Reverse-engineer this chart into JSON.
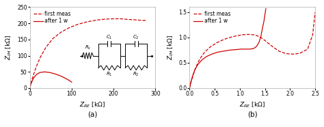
{
  "plot_a": {
    "dashed_re": [
      0,
      3,
      8,
      15,
      25,
      38,
      55,
      75,
      95,
      115,
      138,
      160,
      180,
      200,
      218,
      235,
      248,
      260,
      268,
      274,
      278,
      280
    ],
    "dashed_im": [
      0,
      18,
      38,
      65,
      95,
      125,
      153,
      173,
      187,
      197,
      205,
      210,
      213,
      214,
      214,
      212,
      211,
      210,
      209,
      209,
      208,
      208
    ],
    "solid_re": [
      0,
      1,
      3,
      6,
      10,
      16,
      24,
      35,
      48,
      62,
      76,
      88,
      96,
      100
    ],
    "solid_im": [
      0,
      6,
      14,
      23,
      33,
      42,
      48,
      50,
      48,
      43,
      36,
      28,
      22,
      18
    ],
    "xlim": [
      0,
      300
    ],
    "ylim": [
      0,
      250
    ],
    "xticks": [
      0,
      100,
      200,
      300
    ],
    "yticks": [
      0,
      50,
      100,
      150,
      200,
      250
    ],
    "xlabel": "Z_{RE} [kΩ]",
    "ylabel": "Z_{IM} [kΩ]",
    "label": "(a)"
  },
  "plot_b": {
    "dashed_re": [
      0,
      0.03,
      0.07,
      0.12,
      0.2,
      0.3,
      0.42,
      0.55,
      0.68,
      0.8,
      0.92,
      1.03,
      1.13,
      1.22,
      1.3,
      1.38,
      1.45,
      1.55,
      1.65,
      1.78,
      1.92,
      2.08,
      2.2,
      2.35,
      2.45,
      2.5
    ],
    "dashed_im": [
      0,
      0.12,
      0.25,
      0.4,
      0.57,
      0.71,
      0.82,
      0.9,
      0.96,
      1.0,
      1.03,
      1.05,
      1.06,
      1.06,
      1.05,
      1.02,
      0.98,
      0.9,
      0.82,
      0.73,
      0.68,
      0.67,
      0.69,
      0.77,
      1.05,
      1.5
    ],
    "solid_re": [
      0,
      0.015,
      0.03,
      0.06,
      0.1,
      0.16,
      0.24,
      0.33,
      0.44,
      0.56,
      0.68,
      0.8,
      0.92,
      1.03,
      1.12,
      1.2,
      1.27,
      1.33,
      1.38,
      1.42,
      1.45,
      1.48,
      1.5,
      1.51,
      1.52
    ],
    "solid_im": [
      0,
      0.07,
      0.14,
      0.24,
      0.35,
      0.46,
      0.55,
      0.62,
      0.67,
      0.71,
      0.73,
      0.75,
      0.76,
      0.77,
      0.77,
      0.77,
      0.78,
      0.82,
      0.9,
      1.02,
      1.18,
      1.32,
      1.45,
      1.52,
      1.57
    ],
    "xlim": [
      0,
      2.5
    ],
    "ylim": [
      0,
      1.6
    ],
    "xticks": [
      0,
      0.5,
      1.0,
      1.5,
      2.0,
      2.5
    ],
    "yticks": [
      0,
      0.5,
      1.0,
      1.5
    ],
    "xlabel": "Z_{RE} [kΩ]",
    "ylabel": "Z_{IM} [kΩ]",
    "label": "(b)"
  },
  "line_color": "#cc0000",
  "legend_dashed": "first meas",
  "legend_solid": "after 1 w",
  "bg_color": "#ffffff"
}
